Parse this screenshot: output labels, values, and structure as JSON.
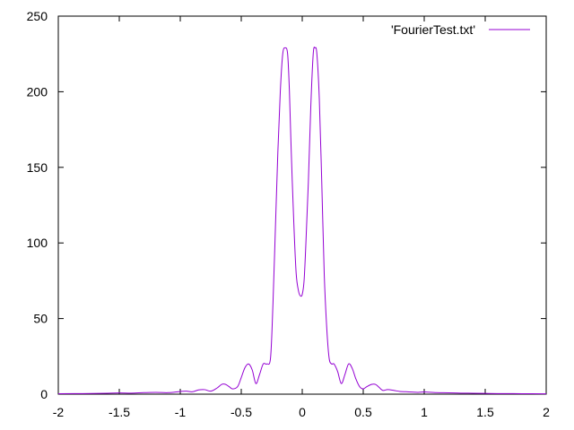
{
  "chart_data": {
    "type": "line",
    "title": "",
    "xlabel": "",
    "ylabel": "",
    "xlim": [
      -2,
      2
    ],
    "ylim": [
      0,
      250
    ],
    "x_ticks": [
      -2,
      -1.5,
      -1,
      -0.5,
      0,
      0.5,
      1,
      1.5,
      2
    ],
    "x_tick_labels": [
      "-2",
      "-1.5",
      "-1",
      "-0.5",
      "0",
      "0.5",
      "1",
      "1.5",
      "2"
    ],
    "y_ticks": [
      0,
      50,
      100,
      150,
      200,
      250
    ],
    "y_tick_labels": [
      "0",
      "50",
      "100",
      "150",
      "200",
      "250"
    ],
    "grid": false,
    "legend_position": "top-right",
    "series": [
      {
        "name": "'FourierTest.txt'",
        "color": "#9400d3",
        "x": [
          -2.0,
          -1.8,
          -1.6,
          -1.5,
          -1.4,
          -1.3,
          -1.2,
          -1.1,
          -1.0,
          -0.95,
          -0.9,
          -0.85,
          -0.8,
          -0.75,
          -0.7,
          -0.66,
          -0.63,
          -0.6,
          -0.57,
          -0.53,
          -0.5,
          -0.47,
          -0.44,
          -0.41,
          -0.38,
          -0.35,
          -0.32,
          -0.29,
          -0.26,
          -0.24,
          -0.22,
          -0.2,
          -0.18,
          -0.16,
          -0.14,
          -0.12,
          -0.105,
          -0.09,
          -0.07,
          -0.05,
          -0.03,
          -0.015,
          0.0,
          0.015,
          0.03,
          0.05,
          0.07,
          0.09,
          0.105,
          0.12,
          0.14,
          0.16,
          0.18,
          0.2,
          0.22,
          0.24,
          0.26,
          0.29,
          0.32,
          0.35,
          0.38,
          0.41,
          0.44,
          0.47,
          0.5,
          0.53,
          0.57,
          0.6,
          0.63,
          0.66,
          0.7,
          0.75,
          0.8,
          0.85,
          0.9,
          0.95,
          1.0,
          1.1,
          1.2,
          1.3,
          1.4,
          1.5,
          1.6,
          1.8,
          2.0
        ],
        "y": [
          0.3,
          0.4,
          0.6,
          0.8,
          0.7,
          1.0,
          1.2,
          1.0,
          1.8,
          2.0,
          1.6,
          2.8,
          3.0,
          2.0,
          4.0,
          6.5,
          6.5,
          5.0,
          3.5,
          5.0,
          11.0,
          17.5,
          20.0,
          16.0,
          7.0,
          13.0,
          20.0,
          20.0,
          24.0,
          60.0,
          110.0,
          160.0,
          200.0,
          225.0,
          229.0,
          225.0,
          200.0,
          160.0,
          115.0,
          80.0,
          68.0,
          65.0,
          66.0,
          75.0,
          100.0,
          140.0,
          190.0,
          225.0,
          229.0,
          225.0,
          195.0,
          140.0,
          80.0,
          45.0,
          24.0,
          20.0,
          20.0,
          15.0,
          7.0,
          13.0,
          20.0,
          17.0,
          10.0,
          5.0,
          3.5,
          5.0,
          6.5,
          6.5,
          4.5,
          2.5,
          3.0,
          2.5,
          1.8,
          1.6,
          1.4,
          1.2,
          1.5,
          1.0,
          0.9,
          0.7,
          0.6,
          0.5,
          0.4,
          0.3,
          0.2
        ]
      }
    ]
  }
}
